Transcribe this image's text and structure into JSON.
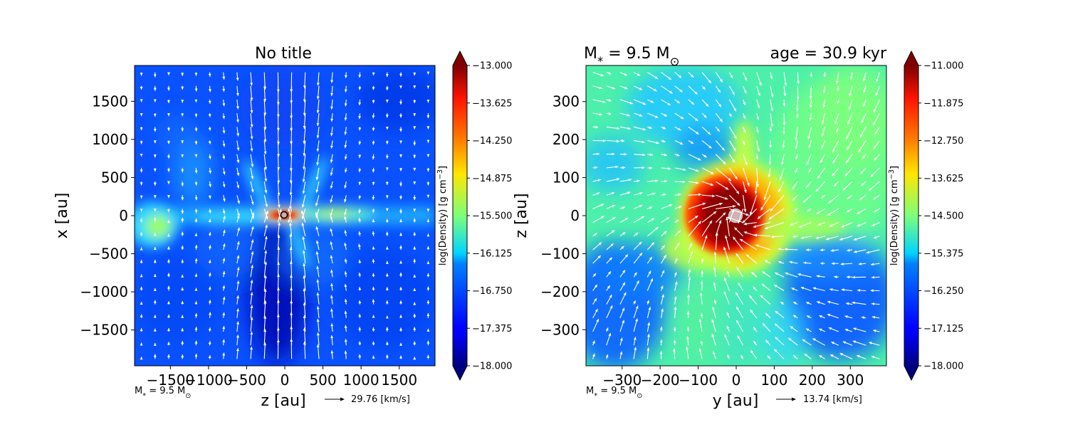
{
  "chart_data": [
    {
      "type": "heatmap",
      "title": "No title",
      "xlabel": "z [au]",
      "ylabel": "x [au]",
      "xlim": [
        -1970,
        1970
      ],
      "ylim": [
        -1970,
        1970
      ],
      "xticks": [
        -1500,
        -1000,
        -500,
        0,
        500,
        1000,
        1500
      ],
      "yticks": [
        -1500,
        -1000,
        -500,
        0,
        500,
        1000,
        1500
      ],
      "xtick_labels": [
        "−1500",
        "−1000",
        "−500",
        "0",
        "500",
        "1000",
        "1500"
      ],
      "ytick_labels": [
        "−1500",
        "−1000",
        "−500",
        "0",
        "500",
        "1000",
        "1500"
      ],
      "colorbar": {
        "label": "log(Density) [g cm$^{-3}$]",
        "vmin": -18.0,
        "vmax": -13.0,
        "ticks": [
          -18.0,
          -17.375,
          -16.75,
          -16.125,
          -15.5,
          -14.875,
          -14.25,
          -13.625,
          -13.0
        ],
        "tick_labels": [
          "−18.000",
          "−17.375",
          "−16.750",
          "−16.125",
          "−15.500",
          "−14.875",
          "−14.250",
          "−13.625",
          "−13.000"
        ]
      },
      "mass_note": "M$_*$ = 9.5 M$_\\odot$",
      "velocity_key": "29.76 [km/s]",
      "field_description": {
        "background_level": -16.9,
        "features": [
          {
            "kind": "horizontal disk band",
            "x_range": [
              -1970,
              1970
            ],
            "y_center": 0,
            "level": -15.3
          },
          {
            "kind": "blob",
            "x": -1700,
            "y": -150,
            "level": -15.0
          },
          {
            "kind": "blob",
            "x": 650,
            "y": 30,
            "level": -14.9
          },
          {
            "kind": "central disk",
            "x": 0,
            "y": 0,
            "level": -13.0
          },
          {
            "kind": "low-density cavity",
            "x": -100,
            "y": -900,
            "level": -17.8
          }
        ]
      }
    },
    {
      "type": "heatmap",
      "title_left": "M$_*$ = 9.5 M$_\\odot$",
      "title_right": "age = 30.9 kyr",
      "xlabel": "y [au]",
      "ylabel": "z [au]",
      "xlim": [
        -395,
        395
      ],
      "ylim": [
        -395,
        395
      ],
      "xticks": [
        -300,
        -200,
        -100,
        0,
        100,
        200,
        300
      ],
      "yticks": [
        -300,
        -200,
        -100,
        0,
        100,
        200,
        300
      ],
      "xtick_labels": [
        "−300",
        "−200",
        "−100",
        "0",
        "100",
        "200",
        "300"
      ],
      "ytick_labels": [
        "−300",
        "−200",
        "−100",
        "0",
        "100",
        "200",
        "300"
      ],
      "colorbar": {
        "label": "log(Density) [g cm$^{-3}$]",
        "vmin": -18.0,
        "vmax": -11.0,
        "ticks": [
          -18.0,
          -17.125,
          -16.25,
          -15.375,
          -14.5,
          -13.625,
          -12.75,
          -11.875,
          -11.0
        ],
        "tick_labels": [
          "−18.000",
          "−17.125",
          "−16.250",
          "−15.375",
          "−14.500",
          "−13.625",
          "−12.750",
          "−11.875",
          "−11.000"
        ]
      },
      "mass_note": "M$_*$ = 9.5 M$_\\odot$",
      "velocity_key": "13.74 [km/s]",
      "field_description": {
        "background_level": -14.6,
        "features": [
          {
            "kind": "dense core",
            "x": 0,
            "y": 0,
            "radius": 100,
            "level": -11.0
          },
          {
            "kind": "low-density region",
            "x": 200,
            "y": -250,
            "level": -16.0
          },
          {
            "kind": "low-density region",
            "x": -300,
            "y": -250,
            "level": -16.2
          }
        ]
      }
    }
  ]
}
